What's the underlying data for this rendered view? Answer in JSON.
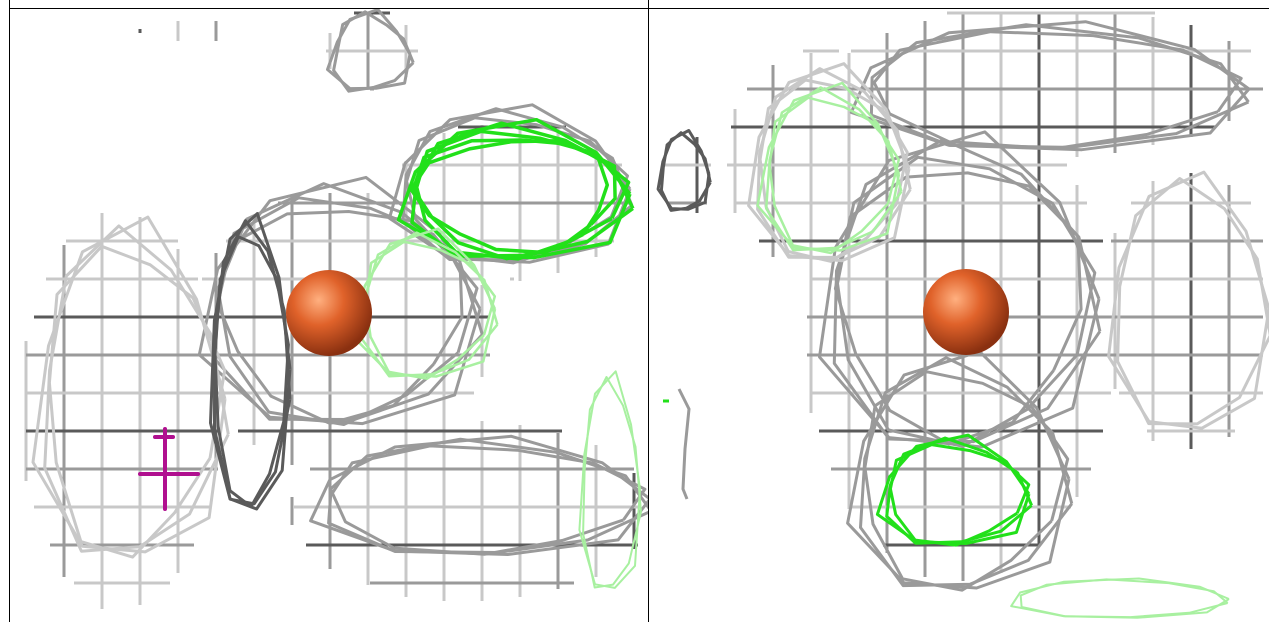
{
  "figure": {
    "panels": [
      {
        "id": "left",
        "subject": "mesh-density-with-metal-ion-and-cross-marker"
      },
      {
        "id": "right",
        "subject": "mesh-density-with-metal-ion"
      }
    ],
    "colors": {
      "mesh_gray": "#9a9a9a",
      "mesh_dark": "#5a5a5a",
      "mesh_light": "#c8c8c8",
      "difference_green": "#22e01a",
      "difference_green_faint": "#a8f0a0",
      "ion_orange": "#e0622a",
      "ion_orange_dark": "#a8401a",
      "marker_magenta": "#b0108f",
      "background": "#ffffff"
    }
  }
}
